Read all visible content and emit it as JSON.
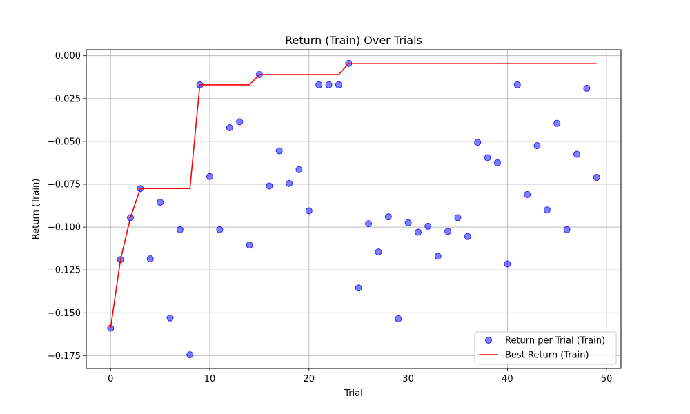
{
  "chart_data": {
    "type": "scatter",
    "title": "Return (Train) Over Trials",
    "xlabel": "Trial",
    "ylabel": "Return (Train)",
    "xlim": [
      -2.45,
      51.45
    ],
    "ylim": [
      -0.1825,
      0.0035
    ],
    "x_ticks": [
      0,
      10,
      20,
      30,
      40,
      50
    ],
    "y_ticks": [
      -0.175,
      -0.15,
      -0.125,
      -0.1,
      -0.075,
      -0.05,
      -0.025,
      0.0
    ],
    "x_tick_labels": [
      "0",
      "10",
      "20",
      "30",
      "40",
      "50"
    ],
    "y_tick_labels": [
      "−0.175",
      "−0.150",
      "−0.125",
      "−0.100",
      "−0.075",
      "−0.050",
      "−0.025",
      "0.000"
    ],
    "grid": true,
    "legend_position": "lower right",
    "series": [
      {
        "name": "Return per Trial (Train)",
        "kind": "scatter",
        "color": "#0000ff",
        "x": [
          0,
          1,
          2,
          3,
          4,
          5,
          6,
          7,
          8,
          9,
          10,
          11,
          12,
          13,
          14,
          15,
          16,
          17,
          18,
          19,
          20,
          21,
          22,
          23,
          24,
          25,
          26,
          27,
          28,
          29,
          30,
          31,
          32,
          33,
          34,
          35,
          36,
          37,
          38,
          39,
          40,
          41,
          42,
          43,
          44,
          45,
          46,
          47,
          48,
          49
        ],
        "y": [
          -0.159,
          -0.119,
          -0.0945,
          -0.0775,
          -0.1185,
          -0.0855,
          -0.153,
          -0.1015,
          -0.1745,
          -0.017,
          -0.0705,
          -0.1015,
          -0.042,
          -0.0385,
          -0.1105,
          -0.011,
          -0.076,
          -0.0555,
          -0.0745,
          -0.0665,
          -0.0905,
          -0.017,
          -0.017,
          -0.017,
          -0.0045,
          -0.1355,
          -0.098,
          -0.1145,
          -0.094,
          -0.1535,
          -0.0975,
          -0.103,
          -0.0995,
          -0.117,
          -0.1025,
          -0.0945,
          -0.1055,
          -0.0505,
          -0.0595,
          -0.0625,
          -0.1215,
          -0.017,
          -0.081,
          -0.0525,
          -0.09,
          -0.0395,
          -0.1015,
          -0.0575,
          -0.019,
          -0.071
        ]
      },
      {
        "name": "Best Return (Train)",
        "kind": "line",
        "color": "#ff0000",
        "x": [
          0,
          1,
          2,
          3,
          4,
          5,
          6,
          7,
          8,
          9,
          10,
          11,
          12,
          13,
          14,
          15,
          16,
          17,
          18,
          19,
          20,
          21,
          22,
          23,
          24,
          25,
          26,
          27,
          28,
          29,
          30,
          31,
          32,
          33,
          34,
          35,
          36,
          37,
          38,
          39,
          40,
          41,
          42,
          43,
          44,
          45,
          46,
          47,
          48,
          49
        ],
        "y": [
          -0.159,
          -0.119,
          -0.0945,
          -0.0775,
          -0.0775,
          -0.0775,
          -0.0775,
          -0.0775,
          -0.0775,
          -0.017,
          -0.017,
          -0.017,
          -0.017,
          -0.017,
          -0.017,
          -0.011,
          -0.011,
          -0.011,
          -0.011,
          -0.011,
          -0.011,
          -0.011,
          -0.011,
          -0.011,
          -0.0045,
          -0.0045,
          -0.0045,
          -0.0045,
          -0.0045,
          -0.0045,
          -0.0045,
          -0.0045,
          -0.0045,
          -0.0045,
          -0.0045,
          -0.0045,
          -0.0045,
          -0.0045,
          -0.0045,
          -0.0045,
          -0.0045,
          -0.0045,
          -0.0045,
          -0.0045,
          -0.0045,
          -0.0045,
          -0.0045,
          -0.0045,
          -0.0045,
          -0.0045
        ]
      }
    ]
  }
}
